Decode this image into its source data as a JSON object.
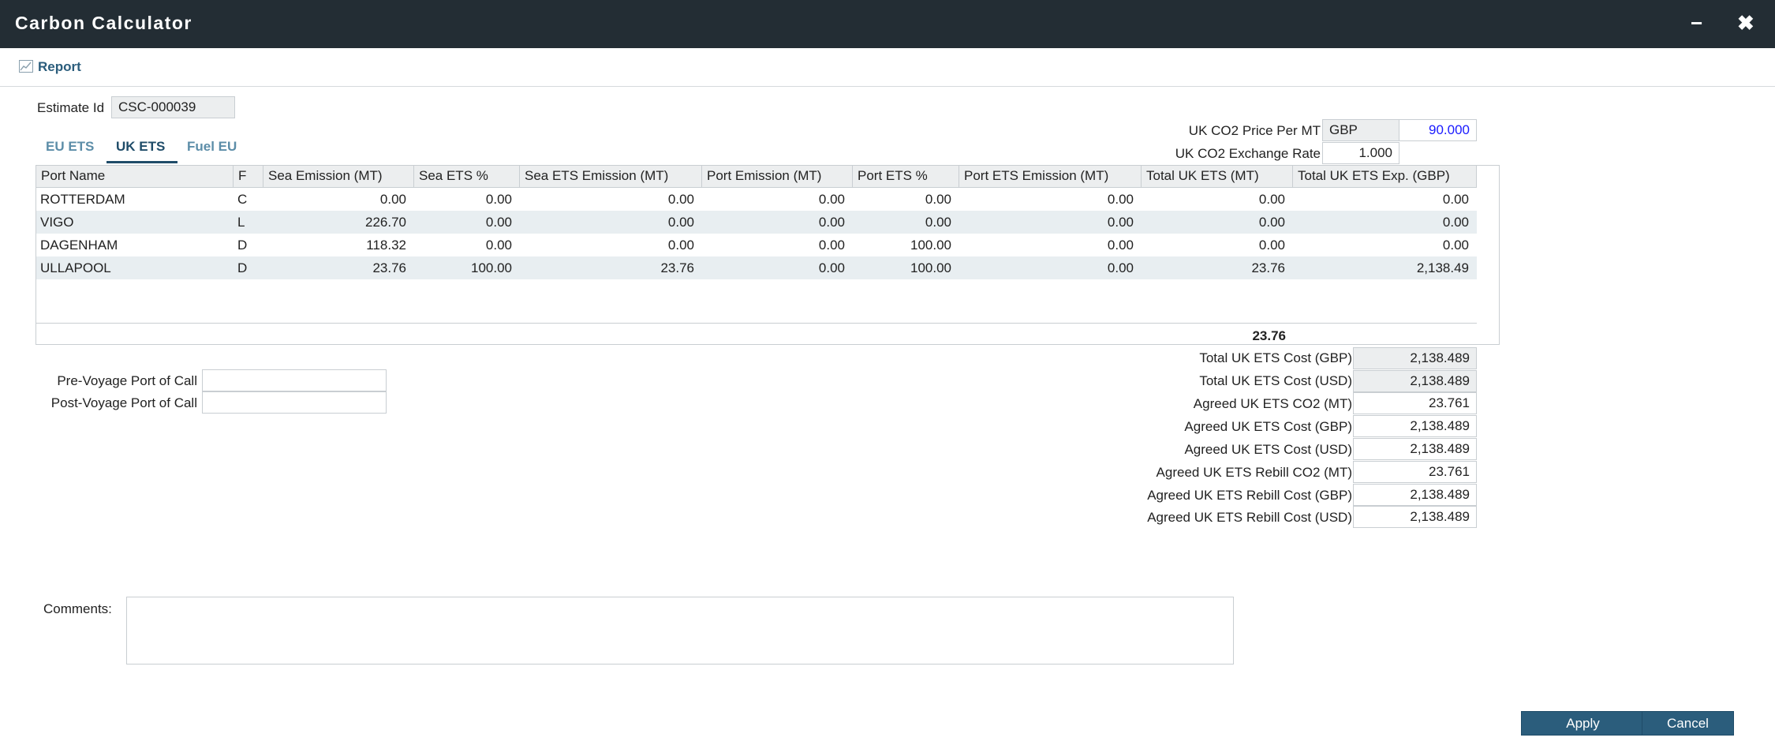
{
  "window": {
    "title": "Carbon Calculator",
    "minimize_icon": "minus-icon",
    "close_icon": "close-icon"
  },
  "toolbar": {
    "report_label": "Report",
    "report_icon": "chart-icon"
  },
  "estimate": {
    "label": "Estimate Id",
    "value": "CSC-000039"
  },
  "price": {
    "price_label": "UK CO2 Price Per MT",
    "currency": "GBP",
    "price_value": "90.000",
    "rate_label": "UK CO2 Exchange Rate",
    "rate_value": "1.000"
  },
  "tabs": [
    {
      "label": "EU ETS"
    },
    {
      "label": "UK ETS"
    },
    {
      "label": "Fuel EU"
    }
  ],
  "grid": {
    "columns": [
      "Port Name",
      "F",
      "Sea Emission (MT)",
      "Sea ETS %",
      "Sea ETS Emission (MT)",
      "Port Emission (MT)",
      "Port ETS %",
      "Port ETS Emission (MT)",
      "Total UK ETS (MT)",
      "Total UK ETS Exp. (GBP)"
    ],
    "rows": [
      [
        "ROTTERDAM",
        "C",
        "0.00",
        "0.00",
        "0.00",
        "0.00",
        "0.00",
        "0.00",
        "0.00",
        "0.00"
      ],
      [
        "VIGO",
        "L",
        "226.70",
        "0.00",
        "0.00",
        "0.00",
        "0.00",
        "0.00",
        "0.00",
        "0.00"
      ],
      [
        "DAGENHAM",
        "D",
        "118.32",
        "0.00",
        "0.00",
        "0.00",
        "100.00",
        "0.00",
        "0.00",
        "0.00"
      ],
      [
        "ULLAPOOL",
        "D",
        "23.76",
        "100.00",
        "23.76",
        "0.00",
        "100.00",
        "0.00",
        "23.76",
        "2,138.49"
      ]
    ],
    "total_uk_ets": "23.76"
  },
  "voyage": {
    "pre_label": "Pre-Voyage Port of Call",
    "pre_value": "",
    "post_label": "Post-Voyage Port of Call",
    "post_value": ""
  },
  "summary": [
    {
      "label": "Total UK ETS Cost (GBP)",
      "value": "2,138.489"
    },
    {
      "label": "Total UK ETS Cost (USD)",
      "value": "2,138.489"
    },
    {
      "label": "Agreed UK ETS CO2 (MT)",
      "value": "23.761"
    },
    {
      "label": "Agreed UK ETS Cost (GBP)",
      "value": "2,138.489"
    },
    {
      "label": "Agreed UK ETS Cost (USD)",
      "value": "2,138.489"
    },
    {
      "label": "Agreed UK ETS Rebill CO2 (MT)",
      "value": "23.761"
    },
    {
      "label": "Agreed UK ETS Rebill Cost (GBP)",
      "value": "2,138.489"
    },
    {
      "label": "Agreed UK ETS Rebill Cost (USD)",
      "value": "2,138.489"
    }
  ],
  "comments": {
    "label": "Comments:",
    "value": ""
  },
  "buttons": {
    "apply": "Apply",
    "cancel": "Cancel"
  },
  "colors": {
    "titlebar": "#232d34",
    "accent": "#2b5d7c",
    "price_text": "#1a1aff"
  }
}
